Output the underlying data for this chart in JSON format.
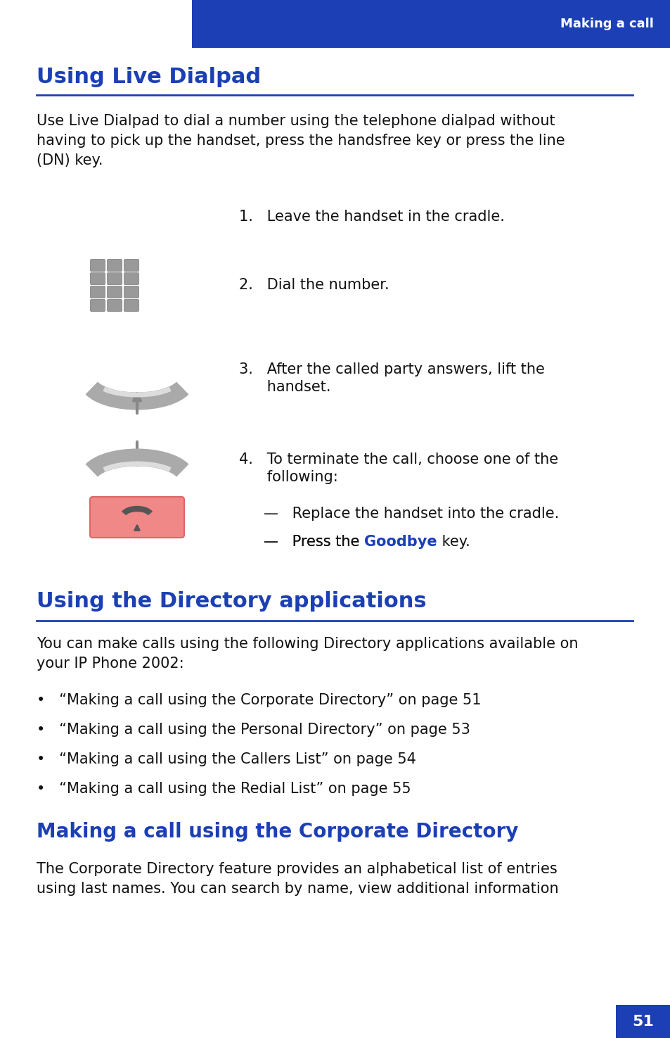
{
  "page_bg": "#ffffff",
  "header_bg": "#1c3fb5",
  "header_text": "Making a call",
  "header_text_color": "#ffffff",
  "blue_color": "#1c3fb5",
  "title1": "Using Live Dialpad",
  "title2": "Using the Directory applications",
  "title3": "Making a call using the Corporate Directory",
  "body1": "Use Live Dialpad to dial a number using the telephone dialpad without\nhaving to pick up the handset, press the handsfree key or press the line\n(DN) key.",
  "body2": "You can make calls using the following Directory applications available on\nyour IP Phone 2002:",
  "body3": "The Corporate Directory feature provides an alphabetical list of entries\nusing last names. You can search by name, view additional information",
  "step1": "1.   Leave the handset in the cradle.",
  "step2": "2.   Dial the number.",
  "step3a": "3.   After the called party answers, lift the",
  "step3b": "      handset.",
  "step4a": "4.   To terminate the call, choose one of the",
  "step4b": "      following:",
  "bullet1": "—   Replace the handset into the cradle.",
  "bullet2a": "—   Press the ",
  "goodbye_text": "Goodbye",
  "bullet2b": " key.",
  "list1": "•   “Making a call using the Corporate Directory” on page 51",
  "list2": "•   “Making a call using the Personal Directory” on page 53",
  "list3": "•   “Making a call using the Callers List” on page 54",
  "list4": "•   “Making a call using the Redial List” on page 55",
  "page_num": "51"
}
